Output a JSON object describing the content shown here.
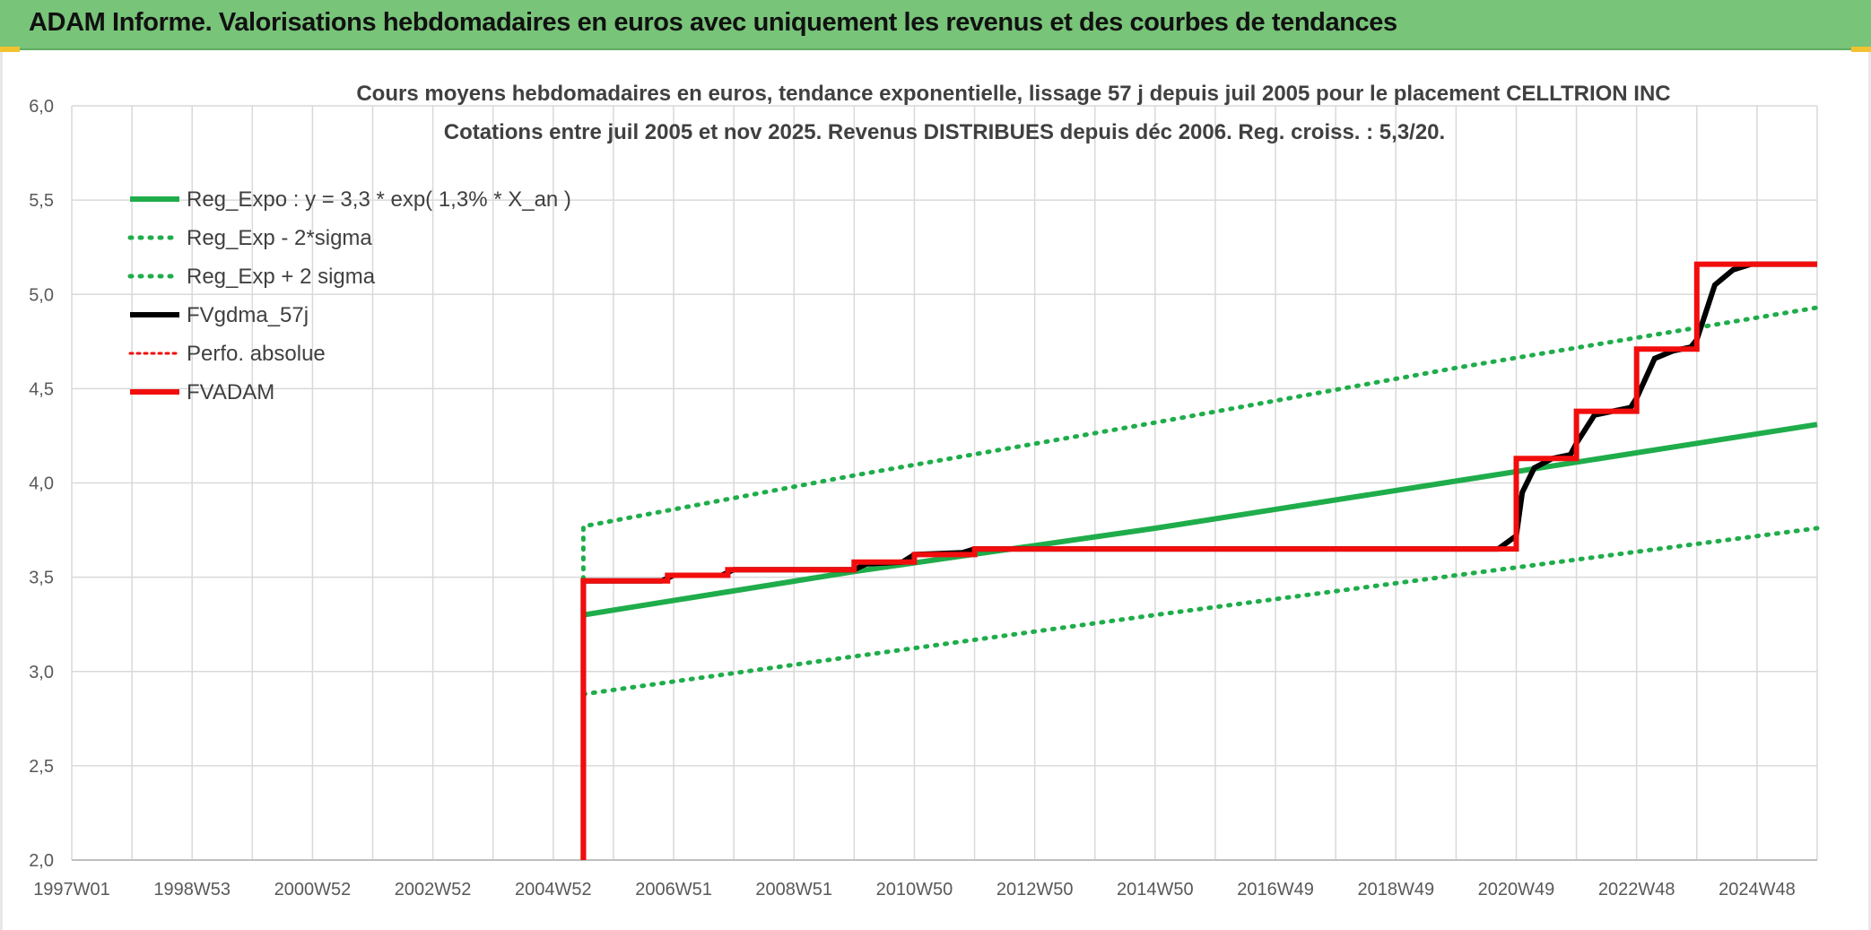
{
  "header": {
    "title": "ADAM Informe. Valorisations hebdomadaires en euros avec uniquement les revenus et des courbes de tendances"
  },
  "colors": {
    "banner": "#78c479",
    "reg_green": "#1fad4b",
    "fvadam_red": "#f20d0d",
    "fvgdma_black": "#000000"
  },
  "chart_data": {
    "type": "line",
    "title": "Cours moyens hebdomadaires en euros, tendance exponentielle, lissage 57 j depuis juil 2005 pour le placement CELLTRION INC",
    "subtitle": "Cotations entre juil 2005 et nov 2025. Revenus DISTRIBUES depuis déc 2006. Reg. croiss. : 5,3/20.",
    "xlabel": "",
    "ylabel": "",
    "x_range": [
      1997.0,
      2026.0
    ],
    "ylim": [
      2.0,
      6.0
    ],
    "y_ticks": [
      2.0,
      2.5,
      3.0,
      3.5,
      4.0,
      4.5,
      5.0,
      5.5,
      6.0
    ],
    "y_tick_labels": [
      "2,0",
      "2,5",
      "3,0",
      "3,5",
      "4,0",
      "4,5",
      "5,0",
      "5,5",
      "6,0"
    ],
    "x_ticks": [
      1997.0,
      1999.0,
      2001.0,
      2003.0,
      2005.0,
      2007.0,
      2009.0,
      2011.0,
      2013.0,
      2015.0,
      2017.0,
      2019.0,
      2021.0,
      2023.0,
      2025.0
    ],
    "x_tick_labels": [
      "1997W01",
      "1998W53",
      "2000W52",
      "2002W52",
      "2004W52",
      "2006W51",
      "2008W51",
      "2010W50",
      "2012W50",
      "2014W50",
      "2016W49",
      "2018W49",
      "2020W49",
      "2022W48",
      "2024W48"
    ],
    "grid": true,
    "legend_position": "top-left",
    "series": [
      {
        "name": "Reg_Expo : y = 3,3 * exp( 1,3% *  X_an )",
        "color": "#1fad4b",
        "style": "solid",
        "width": 6,
        "x": [
          2005.5,
          2010.0,
          2015.0,
          2020.0,
          2026.0
        ],
        "y": [
          3.3,
          3.53,
          3.76,
          4.01,
          4.31
        ]
      },
      {
        "name": "Reg_Exp - 2*sigma",
        "color": "#1fad4b",
        "style": "dotted",
        "width": 5,
        "x": [
          2005.5,
          2010.0,
          2015.0,
          2020.0,
          2026.0
        ],
        "y": [
          2.88,
          3.08,
          3.3,
          3.51,
          3.76
        ]
      },
      {
        "name": "Reg_Exp + 2 sigma",
        "color": "#1fad4b",
        "style": "dotted",
        "width": 5,
        "x": [
          2005.5,
          2005.5,
          2010.0,
          2015.0,
          2020.0,
          2026.0
        ],
        "y": [
          3.49,
          3.77,
          4.04,
          4.32,
          4.61,
          4.93
        ]
      },
      {
        "name": "FVgdma_57j",
        "color": "#000000",
        "style": "solid",
        "width": 6,
        "x": [
          2005.5,
          2005.5,
          2006.8,
          2007.0,
          2007.8,
          2008.0,
          2010.0,
          2010.2,
          2010.8,
          2011.0,
          2011.8,
          2012.0,
          2020.7,
          2021.0,
          2021.1,
          2021.3,
          2021.6,
          2021.9,
          2022.0,
          2022.3,
          2022.6,
          2022.9,
          2023.0,
          2023.3,
          2023.6,
          2023.9,
          2024.0,
          2024.3,
          2024.6,
          2024.9,
          2025.1,
          2025.4,
          2026.0
        ],
        "y": [
          2.0,
          3.48,
          3.48,
          3.51,
          3.51,
          3.54,
          3.54,
          3.57,
          3.58,
          3.62,
          3.63,
          3.65,
          3.65,
          3.72,
          3.95,
          4.08,
          4.13,
          4.15,
          4.21,
          4.36,
          4.38,
          4.4,
          4.45,
          4.66,
          4.7,
          4.72,
          4.76,
          5.05,
          5.13,
          5.16,
          5.16,
          5.16,
          5.16
        ]
      },
      {
        "name": "Perfo. absolue",
        "color": "#f20d0d",
        "style": "dotted",
        "width": 3,
        "x": [],
        "y": []
      },
      {
        "name": "FVADAM",
        "color": "#f20d0d",
        "style": "solid",
        "width": 6,
        "x": [
          2005.5,
          2005.5,
          2006.9,
          2006.9,
          2007.9,
          2007.9,
          2010.0,
          2010.0,
          2011.0,
          2011.0,
          2012.0,
          2012.0,
          2021.0,
          2021.0,
          2022.0,
          2022.0,
          2023.0,
          2023.0,
          2024.0,
          2024.0,
          2026.0
        ],
        "y": [
          2.0,
          3.48,
          3.48,
          3.51,
          3.51,
          3.54,
          3.54,
          3.58,
          3.58,
          3.62,
          3.62,
          3.65,
          3.65,
          4.13,
          4.13,
          4.38,
          4.38,
          4.71,
          4.71,
          5.16,
          5.16
        ]
      }
    ]
  }
}
